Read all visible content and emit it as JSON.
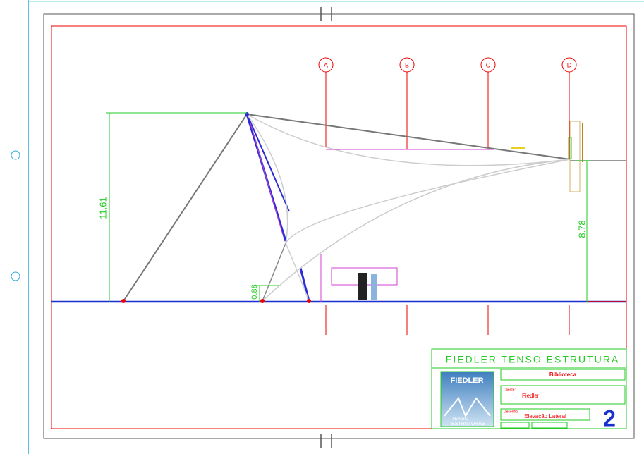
{
  "grid_labels": [
    "A",
    "B",
    "C",
    "D"
  ],
  "dimensions": {
    "height_left": "11.61",
    "height_right": "8.78",
    "small": "0.88"
  },
  "title_block": {
    "company": "FIEDLER TENSO ESTRUTURA",
    "project": "Biblioteca",
    "client_label": "Cliente:",
    "client": "Fiedler",
    "drawing_label": "Desenho:",
    "drawing": "Elevação Lateral",
    "sheet": "2",
    "logo": {
      "top": "FIEDLER",
      "line1": "TENSO",
      "line2": "ESTRUTURAS"
    }
  }
}
